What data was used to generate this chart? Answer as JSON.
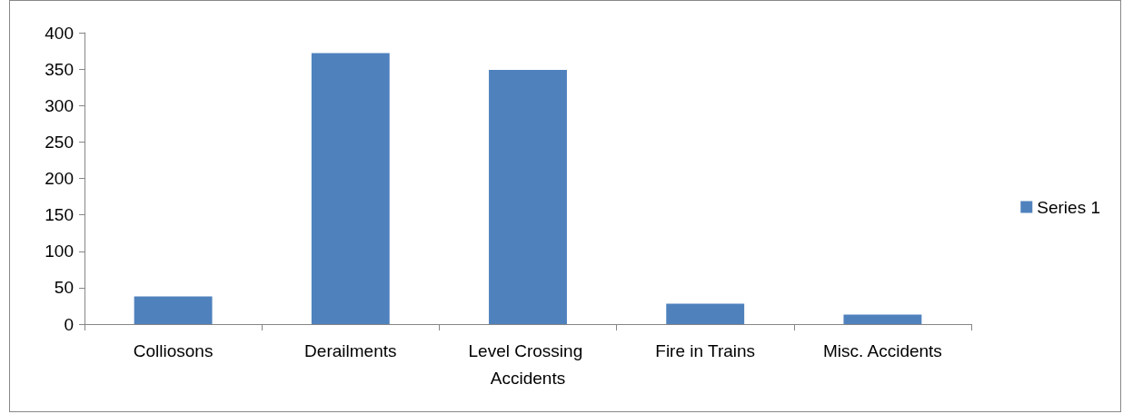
{
  "chart_data": {
    "type": "bar",
    "categories": [
      "Colliosons",
      "Derailments",
      "Level Crossing Accidents",
      "Fire in Trains",
      "Misc. Accidents"
    ],
    "series": [
      {
        "name": "Series 1",
        "color": "#4f81bd",
        "values": [
          38,
          372,
          349,
          28,
          13
        ]
      }
    ],
    "ylim": [
      0,
      400
    ],
    "yticks": [
      0,
      50,
      100,
      150,
      200,
      250,
      300,
      350,
      400
    ],
    "grid": false,
    "legend": "right"
  }
}
